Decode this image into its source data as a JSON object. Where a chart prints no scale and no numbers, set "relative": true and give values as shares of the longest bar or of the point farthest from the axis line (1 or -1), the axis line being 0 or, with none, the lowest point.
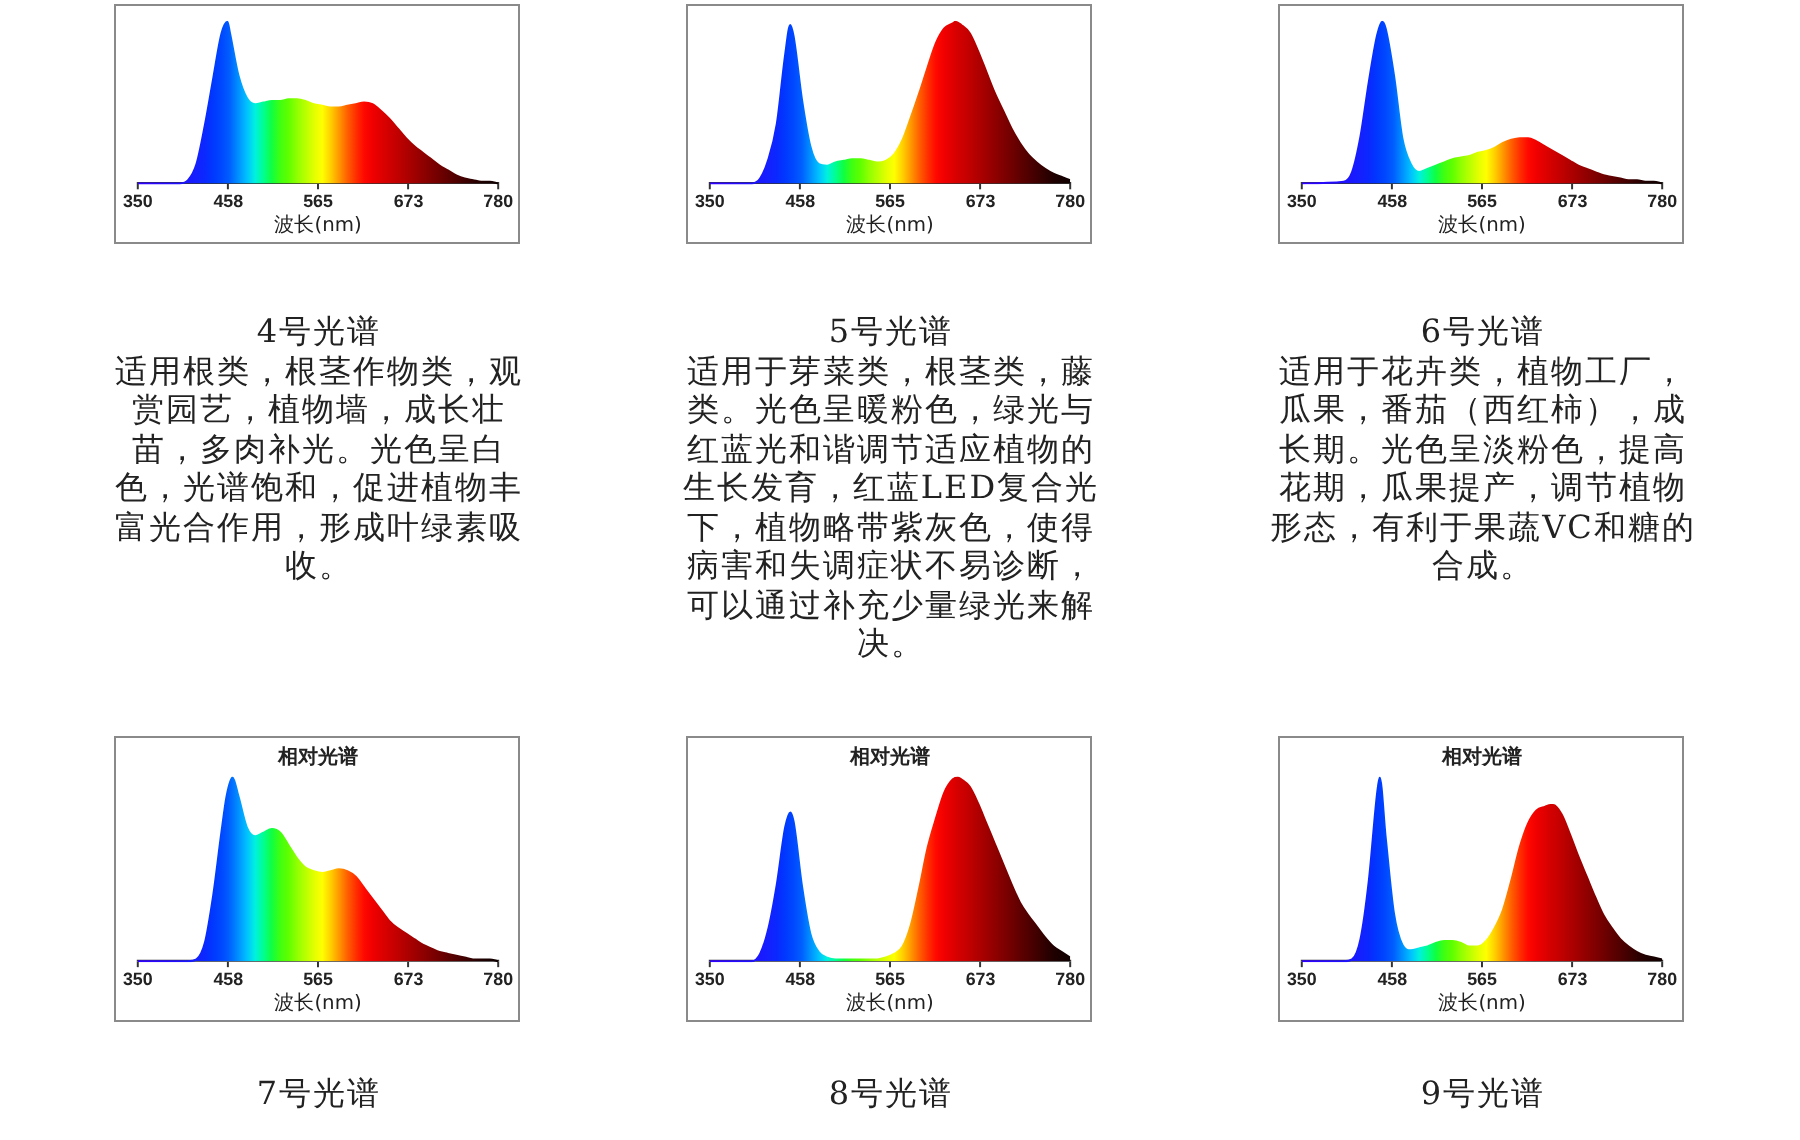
{
  "chart_data": [
    {
      "type": "area",
      "relative": true,
      "xlabel": "波长(nm)",
      "xlim": [
        350,
        780
      ],
      "xticks": [
        350,
        458,
        565,
        673,
        780
      ],
      "x": [
        350,
        400,
        410,
        420,
        430,
        440,
        450,
        457,
        460,
        470,
        480,
        490,
        500,
        510,
        520,
        530,
        540,
        550,
        560,
        570,
        580,
        590,
        600,
        610,
        620,
        630,
        640,
        650,
        660,
        670,
        680,
        690,
        700,
        710,
        720,
        730,
        740,
        750,
        760,
        770,
        780
      ],
      "values": [
        0,
        0,
        0.02,
        0.12,
        0.36,
        0.65,
        0.93,
        1,
        0.93,
        0.67,
        0.53,
        0.49,
        0.5,
        0.51,
        0.51,
        0.52,
        0.52,
        0.51,
        0.49,
        0.48,
        0.47,
        0.47,
        0.48,
        0.49,
        0.5,
        0.49,
        0.45,
        0.4,
        0.34,
        0.28,
        0.23,
        0.19,
        0.15,
        0.11,
        0.08,
        0.05,
        0.03,
        0.02,
        0.01,
        0.01,
        0
      ],
      "colors": [
        "#3000ff",
        "#2010ff",
        "#1a18ff",
        "#1420ff",
        "#0a28ff",
        "#0038ff",
        "#0048ff",
        "#0058ff",
        "#0060ff",
        "#0090ff",
        "#00c0ff",
        "#00f0e0",
        "#00ff90",
        "#10ff40",
        "#40ff10",
        "#60ff00",
        "#90ff00",
        "#b8ff00",
        "#e0ff00",
        "#ffff00",
        "#ffd000",
        "#ff9800",
        "#ff6000",
        "#ff3000",
        "#ff0800",
        "#f00000",
        "#e00000",
        "#d00000",
        "#c00000",
        "#b00000",
        "#a00000",
        "#900000",
        "#800000",
        "#700000",
        "#600000",
        "#500000",
        "#400000",
        "#300000",
        "#200000",
        "#180000",
        "#100000"
      ],
      "annotations": [
        "4号光谱",
        "适用根类，根茎作物类，观赏园艺，植物墙，成长壮苗，多肉补光。光色呈白色，光谱饱和，促进植物丰富光合作用，形成叶绿素吸收。"
      ]
    },
    {
      "type": "area",
      "relative": true,
      "xlabel": "波长(nm)",
      "xlim": [
        350,
        780
      ],
      "xticks": [
        350,
        458,
        565,
        673,
        780
      ],
      "x": [
        350,
        400,
        410,
        420,
        430,
        440,
        446,
        450,
        460,
        470,
        480,
        490,
        500,
        510,
        520,
        530,
        540,
        550,
        560,
        570,
        580,
        590,
        600,
        610,
        620,
        630,
        640,
        643,
        650,
        660,
        670,
        680,
        690,
        700,
        710,
        720,
        730,
        740,
        750,
        760,
        770,
        780
      ],
      "values": [
        0,
        0,
        0.03,
        0.15,
        0.37,
        0.8,
        0.98,
        0.91,
        0.52,
        0.23,
        0.12,
        0.11,
        0.13,
        0.14,
        0.15,
        0.15,
        0.14,
        0.13,
        0.14,
        0.18,
        0.27,
        0.41,
        0.56,
        0.72,
        0.87,
        0.96,
        0.99,
        1,
        0.98,
        0.93,
        0.82,
        0.69,
        0.56,
        0.45,
        0.34,
        0.25,
        0.18,
        0.13,
        0.09,
        0.06,
        0.04,
        0.02
      ],
      "colors": [
        "#3000ff",
        "#2010ff",
        "#1a18ff",
        "#1420ff",
        "#0a28ff",
        "#0038ff",
        "#0042ff",
        "#0048ff",
        "#0060ff",
        "#0090ff",
        "#00c0ff",
        "#00f0e0",
        "#00ff90",
        "#10ff40",
        "#40ff10",
        "#60ff00",
        "#90ff00",
        "#b8ff00",
        "#e0ff00",
        "#ffff00",
        "#ffd000",
        "#ff9800",
        "#ff6000",
        "#ff3000",
        "#ff0800",
        "#f00000",
        "#e00000",
        "#d80000",
        "#d00000",
        "#c00000",
        "#b00000",
        "#a00000",
        "#900000",
        "#800000",
        "#700000",
        "#600000",
        "#500000",
        "#400000",
        "#300000",
        "#200000",
        "#180000",
        "#100000"
      ],
      "annotations": [
        "5号光谱",
        "适用于芽菜类，根茎类，藤类。光色呈暖粉色，绿光与红蓝光和谐调节适应植物的生长发育，红蓝LED复合光下，植物略带紫灰色，使得病害和失调症状不易诊断，可以通过补充少量绿光来解决。"
      ]
    },
    {
      "type": "area",
      "relative": true,
      "xlabel": "波长(nm)",
      "xlim": [
        350,
        780
      ],
      "xticks": [
        350,
        458,
        565,
        673,
        780
      ],
      "x": [
        350,
        400,
        410,
        420,
        430,
        440,
        446,
        450,
        460,
        470,
        480,
        490,
        500,
        510,
        520,
        530,
        540,
        550,
        560,
        570,
        580,
        590,
        600,
        610,
        620,
        630,
        640,
        650,
        660,
        670,
        680,
        690,
        700,
        710,
        720,
        730,
        740,
        750,
        760,
        770,
        780
      ],
      "values": [
        0,
        0.01,
        0.07,
        0.29,
        0.63,
        0.92,
        1,
        0.96,
        0.67,
        0.28,
        0.12,
        0.07,
        0.09,
        0.11,
        0.13,
        0.15,
        0.16,
        0.17,
        0.19,
        0.2,
        0.22,
        0.25,
        0.27,
        0.28,
        0.28,
        0.26,
        0.23,
        0.2,
        0.17,
        0.14,
        0.11,
        0.09,
        0.07,
        0.05,
        0.04,
        0.03,
        0.02,
        0.02,
        0.01,
        0.01,
        0
      ],
      "colors": [
        "#3000ff",
        "#2010ff",
        "#1a18ff",
        "#1420ff",
        "#0a28ff",
        "#0038ff",
        "#0042ff",
        "#0048ff",
        "#0060ff",
        "#0090ff",
        "#00c0ff",
        "#00f0e0",
        "#00ff90",
        "#10ff40",
        "#40ff10",
        "#60ff00",
        "#90ff00",
        "#b8ff00",
        "#e0ff00",
        "#ffff00",
        "#ffd000",
        "#ff9800",
        "#ff6000",
        "#ff3000",
        "#ff0800",
        "#f00000",
        "#e00000",
        "#d00000",
        "#c00000",
        "#b00000",
        "#a00000",
        "#900000",
        "#800000",
        "#700000",
        "#600000",
        "#500000",
        "#400000",
        "#300000",
        "#200000",
        "#180000",
        "#100000"
      ],
      "annotations": [
        "6号光谱",
        "适用于花卉类，植物工厂，瓜果，番茄（西红柿），成长期。光色呈淡粉色，提高花期，瓜果提产，调节植物形态，有利于果蔬VC和糖的合成。"
      ]
    },
    {
      "type": "area",
      "relative": true,
      "title": "相对光谱",
      "xlabel": "波长(nm)",
      "xlim": [
        350,
        780
      ],
      "xticks": [
        350,
        458,
        565,
        673,
        780
      ],
      "x": [
        350,
        400,
        410,
        420,
        430,
        440,
        450,
        456,
        463,
        470,
        480,
        490,
        500,
        510,
        520,
        530,
        540,
        550,
        560,
        570,
        580,
        590,
        600,
        610,
        620,
        630,
        640,
        650,
        660,
        670,
        680,
        690,
        700,
        710,
        720,
        730,
        740,
        750,
        760,
        770,
        780
      ],
      "values": [
        0,
        0,
        0,
        0.01,
        0.1,
        0.36,
        0.71,
        0.9,
        1,
        0.9,
        0.73,
        0.68,
        0.7,
        0.72,
        0.7,
        0.63,
        0.56,
        0.51,
        0.49,
        0.48,
        0.49,
        0.5,
        0.49,
        0.46,
        0.4,
        0.34,
        0.28,
        0.22,
        0.18,
        0.15,
        0.12,
        0.09,
        0.07,
        0.05,
        0.04,
        0.03,
        0.02,
        0.01,
        0.01,
        0.01,
        0
      ],
      "colors": [
        "#3000ff",
        "#2010ff",
        "#1a18ff",
        "#1420ff",
        "#0a28ff",
        "#0038ff",
        "#0048ff",
        "#0056ff",
        "#0070ff",
        "#0090ff",
        "#00c0ff",
        "#00f0e0",
        "#00ff90",
        "#10ff40",
        "#40ff10",
        "#60ff00",
        "#90ff00",
        "#b8ff00",
        "#e0ff00",
        "#ffff00",
        "#ffd000",
        "#ff9800",
        "#ff6000",
        "#ff3000",
        "#ff0800",
        "#f00000",
        "#e00000",
        "#d00000",
        "#c00000",
        "#b00000",
        "#a00000",
        "#900000",
        "#800000",
        "#700000",
        "#600000",
        "#500000",
        "#400000",
        "#300000",
        "#200000",
        "#180000",
        "#100000"
      ],
      "annotations": [
        "7号光谱"
      ]
    },
    {
      "type": "area",
      "relative": true,
      "title": "相对光谱",
      "xlabel": "波长(nm)",
      "xlim": [
        350,
        780
      ],
      "xticks": [
        350,
        458,
        565,
        673,
        780
      ],
      "x": [
        350,
        400,
        410,
        420,
        430,
        440,
        446,
        450,
        460,
        470,
        480,
        490,
        500,
        510,
        520,
        530,
        540,
        550,
        560,
        570,
        580,
        590,
        600,
        610,
        620,
        630,
        640,
        646,
        650,
        660,
        670,
        680,
        690,
        700,
        710,
        720,
        730,
        740,
        750,
        760,
        770,
        780
      ],
      "values": [
        0,
        0,
        0.04,
        0.18,
        0.42,
        0.73,
        0.81,
        0.76,
        0.41,
        0.15,
        0.05,
        0.02,
        0.01,
        0.01,
        0.01,
        0.01,
        0.01,
        0.01,
        0.02,
        0.04,
        0.08,
        0.2,
        0.4,
        0.62,
        0.78,
        0.92,
        0.99,
        1,
        0.99,
        0.95,
        0.86,
        0.75,
        0.64,
        0.53,
        0.42,
        0.32,
        0.25,
        0.19,
        0.13,
        0.08,
        0.05,
        0.02
      ],
      "colors": [
        "#3000ff",
        "#2010ff",
        "#1a18ff",
        "#1420ff",
        "#0a28ff",
        "#0038ff",
        "#0042ff",
        "#0048ff",
        "#0060ff",
        "#0090ff",
        "#00c0ff",
        "#00f0e0",
        "#00ff90",
        "#10ff40",
        "#40ff10",
        "#60ff00",
        "#90ff00",
        "#b8ff00",
        "#e0ff00",
        "#ffff00",
        "#ffd000",
        "#ff9800",
        "#ff6000",
        "#ff3000",
        "#ff0800",
        "#f00000",
        "#e00000",
        "#d40000",
        "#d00000",
        "#c00000",
        "#b00000",
        "#a00000",
        "#900000",
        "#800000",
        "#700000",
        "#600000",
        "#500000",
        "#400000",
        "#300000",
        "#200000",
        "#180000",
        "#100000"
      ],
      "annotations": [
        "8号光谱"
      ]
    },
    {
      "type": "area",
      "relative": true,
      "title": "相对光谱",
      "xlabel": "波长(nm)",
      "xlim": [
        350,
        780
      ],
      "xticks": [
        350,
        458,
        565,
        673,
        780
      ],
      "x": [
        350,
        400,
        410,
        420,
        430,
        440,
        443,
        450,
        460,
        470,
        480,
        490,
        500,
        510,
        520,
        530,
        540,
        550,
        560,
        570,
        580,
        590,
        600,
        610,
        620,
        630,
        640,
        647,
        650,
        660,
        670,
        680,
        690,
        700,
        710,
        720,
        730,
        740,
        750,
        760,
        770,
        780
      ],
      "values": [
        0,
        0,
        0.01,
        0.12,
        0.44,
        0.92,
        1,
        0.68,
        0.26,
        0.09,
        0.06,
        0.07,
        0.08,
        0.1,
        0.11,
        0.11,
        0.1,
        0.08,
        0.08,
        0.11,
        0.18,
        0.28,
        0.44,
        0.62,
        0.75,
        0.82,
        0.84,
        0.85,
        0.85,
        0.8,
        0.69,
        0.57,
        0.46,
        0.35,
        0.25,
        0.18,
        0.12,
        0.08,
        0.05,
        0.03,
        0.02,
        0.01
      ],
      "colors": [
        "#3000ff",
        "#2010ff",
        "#1a18ff",
        "#1420ff",
        "#0a28ff",
        "#0038ff",
        "#003cff",
        "#0048ff",
        "#0060ff",
        "#0090ff",
        "#00c0ff",
        "#00f0e0",
        "#00ff90",
        "#10ff40",
        "#40ff10",
        "#60ff00",
        "#90ff00",
        "#b8ff00",
        "#e0ff00",
        "#ffff00",
        "#ffd000",
        "#ff9800",
        "#ff6000",
        "#ff3000",
        "#ff0800",
        "#f00000",
        "#e00000",
        "#d20000",
        "#d00000",
        "#c00000",
        "#b00000",
        "#a00000",
        "#900000",
        "#800000",
        "#700000",
        "#600000",
        "#500000",
        "#400000",
        "#300000",
        "#200000",
        "#180000",
        "#100000"
      ],
      "annotations": [
        "9号光谱"
      ]
    }
  ]
}
